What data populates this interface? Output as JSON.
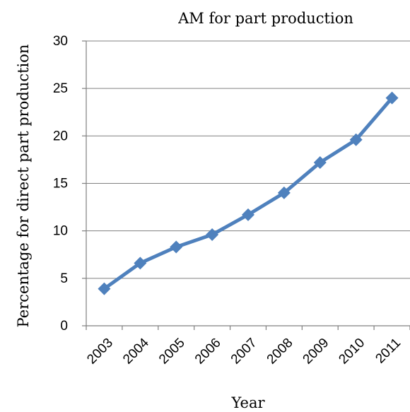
{
  "chart_data": {
    "type": "line",
    "title": "AM for part production",
    "xlabel": "Year",
    "ylabel": "Percentage for direct part production",
    "categories": [
      "2003",
      "2004",
      "2005",
      "2006",
      "2007",
      "2008",
      "2009",
      "2010",
      "2011"
    ],
    "series": [
      {
        "values": [
          3.9,
          6.6,
          8.3,
          9.6,
          11.7,
          14.0,
          17.2,
          19.6,
          24.0
        ],
        "color": "#4f81bd",
        "marker": "diamond"
      }
    ],
    "ylim": [
      0,
      30
    ],
    "yticks": [
      "0",
      "5",
      "10",
      "15",
      "20",
      "25",
      "30"
    ],
    "grid": true,
    "legend": "none"
  }
}
